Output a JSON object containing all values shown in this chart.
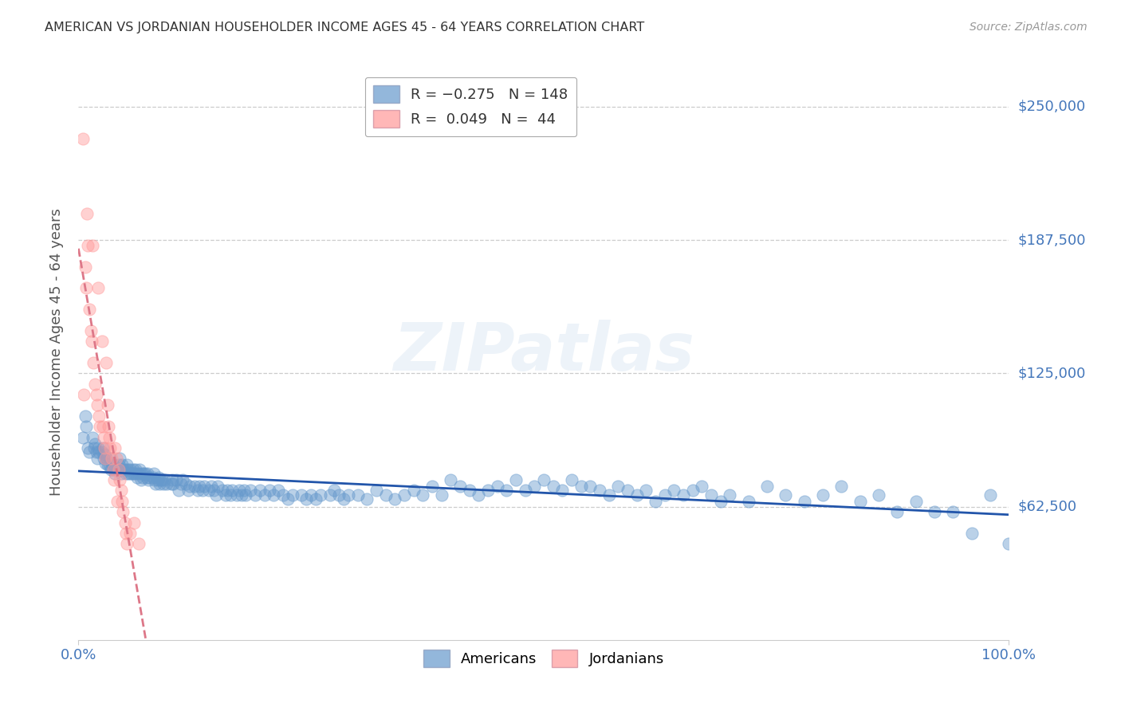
{
  "title": "AMERICAN VS JORDANIAN HOUSEHOLDER INCOME AGES 45 - 64 YEARS CORRELATION CHART",
  "source": "Source: ZipAtlas.com",
  "ylabel": "Householder Income Ages 45 - 64 years",
  "xlim": [
    0.0,
    1.0
  ],
  "ylim": [
    0,
    270000
  ],
  "yticks": [
    62500,
    125000,
    187500,
    250000
  ],
  "ytick_labels": [
    "$62,500",
    "$125,000",
    "$187,500",
    "$250,000"
  ],
  "xtick_labels": [
    "0.0%",
    "100.0%"
  ],
  "watermark": "ZIPatlas",
  "blue_color": "#6699CC",
  "pink_color": "#FF9999",
  "blue_line_color": "#2255AA",
  "pink_line_color": "#DD7788",
  "axis_color": "#4477BB",
  "grid_color": "#CCCCCC",
  "americans_x": [
    0.005,
    0.007,
    0.008,
    0.01,
    0.012,
    0.015,
    0.017,
    0.018,
    0.019,
    0.02,
    0.021,
    0.022,
    0.025,
    0.026,
    0.027,
    0.028,
    0.029,
    0.03,
    0.031,
    0.033,
    0.034,
    0.035,
    0.036,
    0.037,
    0.038,
    0.039,
    0.042,
    0.043,
    0.044,
    0.045,
    0.046,
    0.047,
    0.048,
    0.05,
    0.051,
    0.052,
    0.053,
    0.054,
    0.055,
    0.056,
    0.058,
    0.059,
    0.06,
    0.061,
    0.062,
    0.063,
    0.065,
    0.066,
    0.067,
    0.068,
    0.069,
    0.07,
    0.072,
    0.073,
    0.074,
    0.075,
    0.076,
    0.08,
    0.081,
    0.082,
    0.083,
    0.085,
    0.086,
    0.087,
    0.088,
    0.09,
    0.091,
    0.092,
    0.095,
    0.1,
    0.101,
    0.102,
    0.105,
    0.108,
    0.11,
    0.112,
    0.115,
    0.118,
    0.12,
    0.125,
    0.128,
    0.13,
    0.133,
    0.135,
    0.14,
    0.143,
    0.145,
    0.148,
    0.15,
    0.155,
    0.158,
    0.16,
    0.163,
    0.165,
    0.17,
    0.173,
    0.175,
    0.178,
    0.18,
    0.185,
    0.19,
    0.195,
    0.2,
    0.205,
    0.21,
    0.215,
    0.22,
    0.225,
    0.23,
    0.24,
    0.245,
    0.25,
    0.255,
    0.26,
    0.27,
    0.275,
    0.28,
    0.285,
    0.29,
    0.3,
    0.31,
    0.32,
    0.33,
    0.34,
    0.35,
    0.36,
    0.37,
    0.38,
    0.39,
    0.4,
    0.41,
    0.42,
    0.43,
    0.44,
    0.45,
    0.46,
    0.47,
    0.48,
    0.49,
    0.5,
    0.51,
    0.52,
    0.53,
    0.54,
    0.55,
    0.56,
    0.57,
    0.58,
    0.59,
    0.6,
    0.61,
    0.62,
    0.63,
    0.64,
    0.65,
    0.66,
    0.67,
    0.68,
    0.69,
    0.7,
    0.72,
    0.74,
    0.76,
    0.78,
    0.8,
    0.82,
    0.84,
    0.86,
    0.88,
    0.9,
    0.92,
    0.94,
    0.96,
    0.98,
    1.0
  ],
  "americans_y": [
    95000,
    105000,
    100000,
    90000,
    88000,
    95000,
    90000,
    92000,
    88000,
    85000,
    90000,
    88000,
    88000,
    90000,
    85000,
    87000,
    83000,
    85000,
    82000,
    82000,
    85000,
    80000,
    83000,
    82000,
    80000,
    78000,
    80000,
    82000,
    85000,
    80000,
    78000,
    82000,
    80000,
    80000,
    78000,
    82000,
    80000,
    78000,
    80000,
    78000,
    78000,
    80000,
    78000,
    80000,
    78000,
    76000,
    78000,
    80000,
    75000,
    78000,
    76000,
    78000,
    78000,
    76000,
    78000,
    75000,
    76000,
    76000,
    78000,
    75000,
    73000,
    75000,
    76000,
    73000,
    75000,
    75000,
    73000,
    75000,
    73000,
    73000,
    75000,
    73000,
    75000,
    70000,
    73000,
    75000,
    73000,
    70000,
    72000,
    72000,
    70000,
    72000,
    70000,
    72000,
    70000,
    72000,
    70000,
    68000,
    72000,
    70000,
    68000,
    70000,
    68000,
    70000,
    68000,
    70000,
    68000,
    70000,
    68000,
    70000,
    68000,
    70000,
    68000,
    70000,
    68000,
    70000,
    68000,
    66000,
    68000,
    68000,
    66000,
    68000,
    66000,
    68000,
    68000,
    70000,
    68000,
    66000,
    68000,
    68000,
    66000,
    70000,
    68000,
    66000,
    68000,
    70000,
    68000,
    72000,
    68000,
    75000,
    72000,
    70000,
    68000,
    70000,
    72000,
    70000,
    75000,
    70000,
    72000,
    75000,
    72000,
    70000,
    75000,
    72000,
    72000,
    70000,
    68000,
    72000,
    70000,
    68000,
    70000,
    65000,
    68000,
    70000,
    68000,
    70000,
    72000,
    68000,
    65000,
    68000,
    65000,
    72000,
    68000,
    65000,
    68000,
    72000,
    65000,
    68000,
    60000,
    65000,
    60000,
    60000,
    50000,
    68000,
    45000
  ],
  "jordanians_x": [
    0.005,
    0.006,
    0.007,
    0.008,
    0.009,
    0.01,
    0.012,
    0.013,
    0.014,
    0.015,
    0.016,
    0.018,
    0.019,
    0.02,
    0.021,
    0.022,
    0.023,
    0.025,
    0.026,
    0.027,
    0.028,
    0.029,
    0.03,
    0.031,
    0.032,
    0.033,
    0.034,
    0.036,
    0.037,
    0.038,
    0.039,
    0.041,
    0.042,
    0.043,
    0.044,
    0.046,
    0.047,
    0.048,
    0.05,
    0.051,
    0.052,
    0.055,
    0.06,
    0.065
  ],
  "jordanians_y": [
    235000,
    115000,
    175000,
    165000,
    200000,
    185000,
    155000,
    145000,
    140000,
    185000,
    130000,
    120000,
    115000,
    110000,
    165000,
    105000,
    100000,
    140000,
    100000,
    95000,
    90000,
    85000,
    130000,
    110000,
    100000,
    95000,
    90000,
    85000,
    80000,
    75000,
    90000,
    85000,
    65000,
    80000,
    75000,
    70000,
    65000,
    60000,
    55000,
    50000,
    45000,
    50000,
    55000,
    45000
  ]
}
